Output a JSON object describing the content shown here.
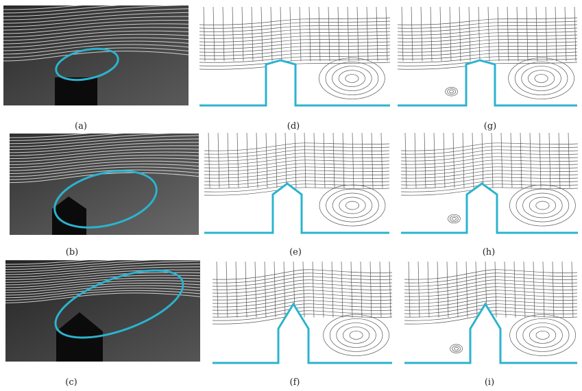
{
  "figure": {
    "accent_color": "#2bb3cf",
    "panels": [
      {
        "label": "(a)",
        "kind": "photo",
        "shape": "square-obstacle"
      },
      {
        "label": "(b)",
        "kind": "photo",
        "shape": "triangle-roof-obstacle"
      },
      {
        "label": "(c)",
        "kind": "photo",
        "shape": "tall-triangle-roof-obstacle"
      },
      {
        "label": "(d)",
        "kind": "streamlines",
        "shape": "shallow-roof"
      },
      {
        "label": "(e)",
        "kind": "streamlines",
        "shape": "medium-roof"
      },
      {
        "label": "(f)",
        "kind": "streamlines",
        "shape": "steep-roof"
      },
      {
        "label": "(g)",
        "kind": "streamlines",
        "shape": "shallow-roof"
      },
      {
        "label": "(h)",
        "kind": "streamlines",
        "shape": "medium-roof"
      },
      {
        "label": "(i)",
        "kind": "streamlines",
        "shape": "steep-roof"
      }
    ]
  }
}
